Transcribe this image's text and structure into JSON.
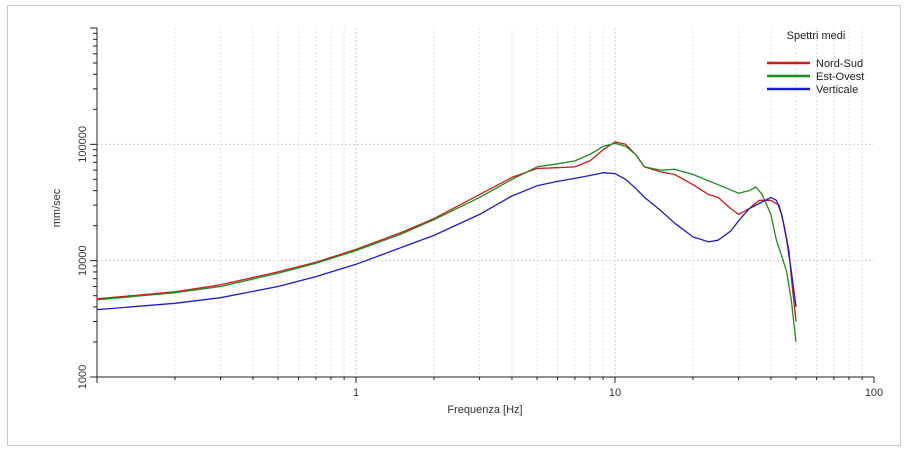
{
  "chart_data": {
    "type": "line",
    "title": "",
    "xlabel": "Frequenza [Hz]",
    "ylabel": "mm/sec",
    "x_scale": "log",
    "y_scale": "log",
    "xlim": [
      0.1,
      100
    ],
    "ylim": [
      1000,
      1000000
    ],
    "x_ticks": [
      {
        "value": 1,
        "label": "1"
      },
      {
        "value": 10,
        "label": "10"
      },
      {
        "value": 100,
        "label": "100"
      }
    ],
    "y_ticks": [
      {
        "value": 1000,
        "label": "1000"
      },
      {
        "value": 10000,
        "label": "10000"
      },
      {
        "value": 100000,
        "label": "100000"
      }
    ],
    "grid": true,
    "legend": {
      "title": "Spettri medi",
      "position": "top-right"
    },
    "series": [
      {
        "name": "Nord-Sud",
        "color": "#d11a1a",
        "points": [
          [
            0.1,
            4700
          ],
          [
            0.2,
            5400
          ],
          [
            0.3,
            6200
          ],
          [
            0.5,
            8000
          ],
          [
            0.7,
            9700
          ],
          [
            1,
            12500
          ],
          [
            1.5,
            17500
          ],
          [
            2,
            23000
          ],
          [
            3,
            37000
          ],
          [
            4,
            52000
          ],
          [
            5,
            62000
          ],
          [
            6,
            63000
          ],
          [
            7,
            64000
          ],
          [
            8,
            72000
          ],
          [
            9,
            90000
          ],
          [
            10,
            105000
          ],
          [
            11,
            100000
          ],
          [
            12,
            82000
          ],
          [
            13,
            64000
          ],
          [
            15,
            58000
          ],
          [
            17,
            55000
          ],
          [
            20,
            45000
          ],
          [
            23,
            37000
          ],
          [
            25,
            35000
          ],
          [
            28,
            28000
          ],
          [
            30,
            25000
          ],
          [
            33,
            28000
          ],
          [
            36,
            33000
          ],
          [
            40,
            33000
          ],
          [
            43,
            30000
          ],
          [
            45,
            20000
          ],
          [
            47,
            12000
          ],
          [
            48,
            7000
          ],
          [
            49,
            4500
          ],
          [
            50,
            3000
          ]
        ]
      },
      {
        "name": "Est-Ovest",
        "color": "#1e8c1e",
        "points": [
          [
            0.1,
            4600
          ],
          [
            0.2,
            5300
          ],
          [
            0.3,
            6000
          ],
          [
            0.5,
            7800
          ],
          [
            0.7,
            9500
          ],
          [
            1,
            12200
          ],
          [
            1.5,
            17000
          ],
          [
            2,
            22500
          ],
          [
            3,
            35000
          ],
          [
            4,
            50000
          ],
          [
            5,
            64000
          ],
          [
            6,
            68000
          ],
          [
            7,
            72000
          ],
          [
            8,
            82000
          ],
          [
            9,
            96000
          ],
          [
            10,
            102000
          ],
          [
            11,
            96000
          ],
          [
            12,
            82000
          ],
          [
            13,
            64000
          ],
          [
            15,
            60000
          ],
          [
            17,
            61000
          ],
          [
            20,
            55000
          ],
          [
            25,
            45000
          ],
          [
            30,
            38000
          ],
          [
            33,
            40000
          ],
          [
            35,
            43000
          ],
          [
            37,
            37000
          ],
          [
            40,
            25000
          ],
          [
            42,
            15000
          ],
          [
            44,
            11000
          ],
          [
            46,
            8000
          ],
          [
            48,
            4500
          ],
          [
            50,
            2000
          ]
        ]
      },
      {
        "name": "Verticale",
        "color": "#1c1cc8",
        "points": [
          [
            0.1,
            3800
          ],
          [
            0.2,
            4300
          ],
          [
            0.3,
            4800
          ],
          [
            0.5,
            6000
          ],
          [
            0.7,
            7300
          ],
          [
            1,
            9300
          ],
          [
            1.5,
            13000
          ],
          [
            2,
            16500
          ],
          [
            3,
            25000
          ],
          [
            4,
            36000
          ],
          [
            5,
            44000
          ],
          [
            6,
            48000
          ],
          [
            7,
            51000
          ],
          [
            8,
            54000
          ],
          [
            9,
            57000
          ],
          [
            10,
            56000
          ],
          [
            11,
            50000
          ],
          [
            12,
            42000
          ],
          [
            13,
            35000
          ],
          [
            15,
            27000
          ],
          [
            17,
            21000
          ],
          [
            20,
            16000
          ],
          [
            23,
            14500
          ],
          [
            25,
            15000
          ],
          [
            28,
            18000
          ],
          [
            30,
            22000
          ],
          [
            33,
            28000
          ],
          [
            36,
            31000
          ],
          [
            40,
            35000
          ],
          [
            42,
            33000
          ],
          [
            44,
            25000
          ],
          [
            46,
            15000
          ],
          [
            48,
            8000
          ],
          [
            50,
            4000
          ]
        ]
      }
    ]
  }
}
